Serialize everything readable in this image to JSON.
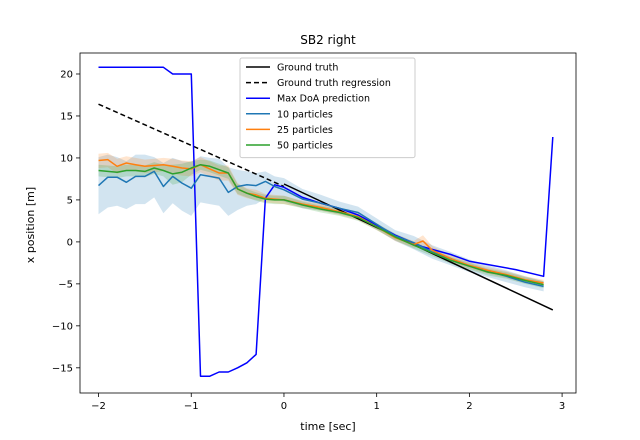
{
  "chart_data": {
    "type": "line",
    "title": "SB2 right",
    "xlabel": "time [sec]",
    "ylabel": "x position [m]",
    "xlim": [
      -2.2,
      3.15
    ],
    "ylim": [
      -18,
      22.5
    ],
    "xticks": [
      -2,
      -1,
      0,
      1,
      2,
      3
    ],
    "yticks": [
      -15,
      -10,
      -5,
      0,
      5,
      10,
      15,
      20
    ],
    "grid": false,
    "legend_position": "top-center",
    "series": [
      {
        "name": "Ground truth",
        "color": "#000000",
        "style": "solid",
        "x": [
          0.0,
          2.9
        ],
        "y": [
          6.9,
          -8.1
        ]
      },
      {
        "name": "Ground truth regression",
        "color": "#000000",
        "style": "dashed",
        "x": [
          -2.0,
          0.0
        ],
        "y": [
          16.4,
          6.6
        ]
      },
      {
        "name": "Max DoA prediction",
        "color": "#0000ff",
        "style": "solid",
        "x": [
          -2.0,
          -1.8,
          -1.6,
          -1.4,
          -1.3,
          -1.2,
          -1.1,
          -1.0,
          -0.9,
          -0.8,
          -0.7,
          -0.6,
          -0.5,
          -0.4,
          -0.3,
          -0.2,
          -0.1,
          0.0,
          0.2,
          0.4,
          0.6,
          0.8,
          1.0,
          1.2,
          1.5,
          1.8,
          2.0,
          2.5,
          2.8,
          2.9
        ],
        "y": [
          20.8,
          20.8,
          20.8,
          20.8,
          20.8,
          20.0,
          20.0,
          20.0,
          -16.0,
          -16.0,
          -15.5,
          -15.5,
          -15.0,
          -14.4,
          -13.4,
          5.2,
          6.8,
          6.5,
          5.3,
          4.6,
          4.0,
          3.2,
          2.0,
          0.8,
          -0.6,
          -1.5,
          -2.3,
          -3.3,
          -4.1,
          12.5
        ]
      },
      {
        "name": "10 particles",
        "color": "#1f77b4",
        "style": "solid",
        "x": [
          -2.0,
          -1.9,
          -1.8,
          -1.7,
          -1.6,
          -1.5,
          -1.4,
          -1.3,
          -1.2,
          -1.1,
          -1.0,
          -0.9,
          -0.8,
          -0.7,
          -0.6,
          -0.5,
          -0.4,
          -0.3,
          -0.2,
          -0.1,
          0.0,
          0.2,
          0.4,
          0.6,
          0.8,
          1.0,
          1.2,
          1.4,
          1.6,
          1.8,
          2.0,
          2.2,
          2.4,
          2.6,
          2.8
        ],
        "y": [
          6.7,
          7.7,
          7.7,
          7.1,
          7.8,
          7.8,
          8.4,
          6.6,
          7.8,
          7.0,
          6.4,
          8.0,
          7.8,
          7.6,
          5.9,
          6.6,
          6.8,
          6.7,
          7.2,
          6.6,
          6.2,
          5.1,
          4.6,
          4.0,
          3.5,
          2.1,
          0.7,
          -0.1,
          -1.2,
          -2.0,
          -2.9,
          -3.5,
          -4.1,
          -4.8,
          -5.3
        ],
        "band_low": [
          3.3,
          4.1,
          4.3,
          3.9,
          4.5,
          4.5,
          5.3,
          3.4,
          4.6,
          3.7,
          3.1,
          4.7,
          4.5,
          4.3,
          3.1,
          3.8,
          4.3,
          4.5,
          5.2,
          5.1,
          4.8,
          4.0,
          3.7,
          3.3,
          2.8,
          1.5,
          0.1,
          -0.9,
          -2.0,
          -2.8,
          -3.6,
          -4.2,
          -4.8,
          -5.4,
          -5.9
        ],
        "band_high": [
          10.1,
          10.4,
          10.1,
          9.6,
          10.4,
          10.4,
          10.1,
          9.4,
          10.0,
          9.6,
          9.5,
          10.2,
          10.0,
          9.9,
          8.9,
          8.6,
          8.4,
          8.2,
          8.4,
          7.8,
          7.6,
          6.3,
          5.6,
          4.8,
          4.2,
          2.8,
          1.4,
          0.7,
          -0.4,
          -1.2,
          -2.1,
          -2.8,
          -3.4,
          -4.1,
          -4.7
        ]
      },
      {
        "name": "25 particles",
        "color": "#ff7f0e",
        "style": "solid",
        "x": [
          -2.0,
          -1.9,
          -1.8,
          -1.7,
          -1.6,
          -1.5,
          -1.4,
          -1.3,
          -1.2,
          -1.1,
          -1.0,
          -0.9,
          -0.8,
          -0.7,
          -0.6,
          -0.5,
          -0.4,
          -0.3,
          -0.2,
          -0.1,
          0.0,
          0.2,
          0.4,
          0.6,
          0.8,
          1.0,
          1.2,
          1.4,
          1.5,
          1.6,
          1.8,
          2.0,
          2.2,
          2.4,
          2.6,
          2.8
        ],
        "y": [
          9.7,
          9.8,
          9.0,
          9.4,
          9.2,
          9.0,
          9.1,
          9.2,
          9.0,
          8.8,
          8.7,
          9.2,
          8.7,
          8.2,
          8.2,
          6.3,
          5.8,
          5.6,
          5.2,
          5.1,
          5.0,
          4.5,
          4.1,
          3.6,
          3.0,
          1.8,
          0.5,
          -0.3,
          0.1,
          -1.0,
          -2.0,
          -2.8,
          -3.4,
          -3.9,
          -4.5,
          -4.9
        ],
        "band_low": [
          8.8,
          8.9,
          8.1,
          8.5,
          8.4,
          8.2,
          8.3,
          8.4,
          8.1,
          7.9,
          7.8,
          8.3,
          7.8,
          7.3,
          7.3,
          5.6,
          5.2,
          5.0,
          4.7,
          4.6,
          4.5,
          4.1,
          3.7,
          3.2,
          2.6,
          1.4,
          0.1,
          -0.7,
          -0.4,
          -1.5,
          -2.4,
          -3.2,
          -3.8,
          -4.3,
          -4.9,
          -5.3
        ],
        "band_high": [
          10.5,
          10.6,
          9.9,
          10.2,
          10.0,
          9.8,
          9.9,
          10.0,
          9.9,
          9.7,
          9.6,
          10.1,
          9.6,
          9.1,
          9.1,
          7.0,
          6.4,
          6.2,
          5.7,
          5.6,
          5.5,
          4.9,
          4.5,
          4.0,
          3.4,
          2.2,
          0.9,
          0.1,
          0.8,
          -0.5,
          -1.6,
          -2.4,
          -3.0,
          -3.5,
          -4.1,
          -4.5
        ]
      },
      {
        "name": "50 particles",
        "color": "#2ca02c",
        "style": "solid",
        "x": [
          -2.0,
          -1.9,
          -1.8,
          -1.7,
          -1.6,
          -1.5,
          -1.4,
          -1.3,
          -1.2,
          -1.1,
          -1.0,
          -0.9,
          -0.8,
          -0.7,
          -0.6,
          -0.5,
          -0.4,
          -0.3,
          -0.2,
          -0.1,
          0.0,
          0.2,
          0.4,
          0.6,
          0.8,
          1.0,
          1.2,
          1.4,
          1.6,
          1.8,
          2.0,
          2.2,
          2.4,
          2.6,
          2.8
        ],
        "y": [
          8.5,
          8.4,
          8.3,
          8.5,
          8.5,
          8.4,
          8.8,
          8.5,
          8.1,
          8.3,
          8.8,
          9.2,
          9.0,
          8.6,
          8.2,
          6.3,
          5.8,
          5.4,
          5.1,
          5.0,
          5.0,
          4.4,
          3.9,
          3.5,
          2.9,
          1.8,
          0.6,
          -0.4,
          -1.3,
          -2.2,
          -2.9,
          -3.6,
          -4.0,
          -4.6,
          -5.1
        ],
        "band_low": [
          7.8,
          7.7,
          7.6,
          7.8,
          7.8,
          7.7,
          8.1,
          7.8,
          6.8,
          7.1,
          8.0,
          8.6,
          8.3,
          7.9,
          7.5,
          5.7,
          5.3,
          4.9,
          4.6,
          4.5,
          4.5,
          4.0,
          3.5,
          3.1,
          2.5,
          1.4,
          0.2,
          -0.8,
          -1.7,
          -2.6,
          -3.3,
          -4.0,
          -4.4,
          -5.0,
          -5.5
        ],
        "band_high": [
          9.2,
          9.1,
          9.0,
          9.2,
          9.2,
          9.1,
          9.5,
          9.2,
          9.2,
          9.3,
          9.6,
          9.8,
          9.7,
          9.3,
          8.9,
          6.9,
          6.3,
          5.9,
          5.6,
          5.5,
          5.5,
          4.8,
          4.3,
          3.9,
          3.3,
          2.2,
          1.0,
          0.0,
          -0.9,
          -1.8,
          -2.5,
          -3.2,
          -3.6,
          -4.2,
          -4.7
        ]
      }
    ]
  }
}
